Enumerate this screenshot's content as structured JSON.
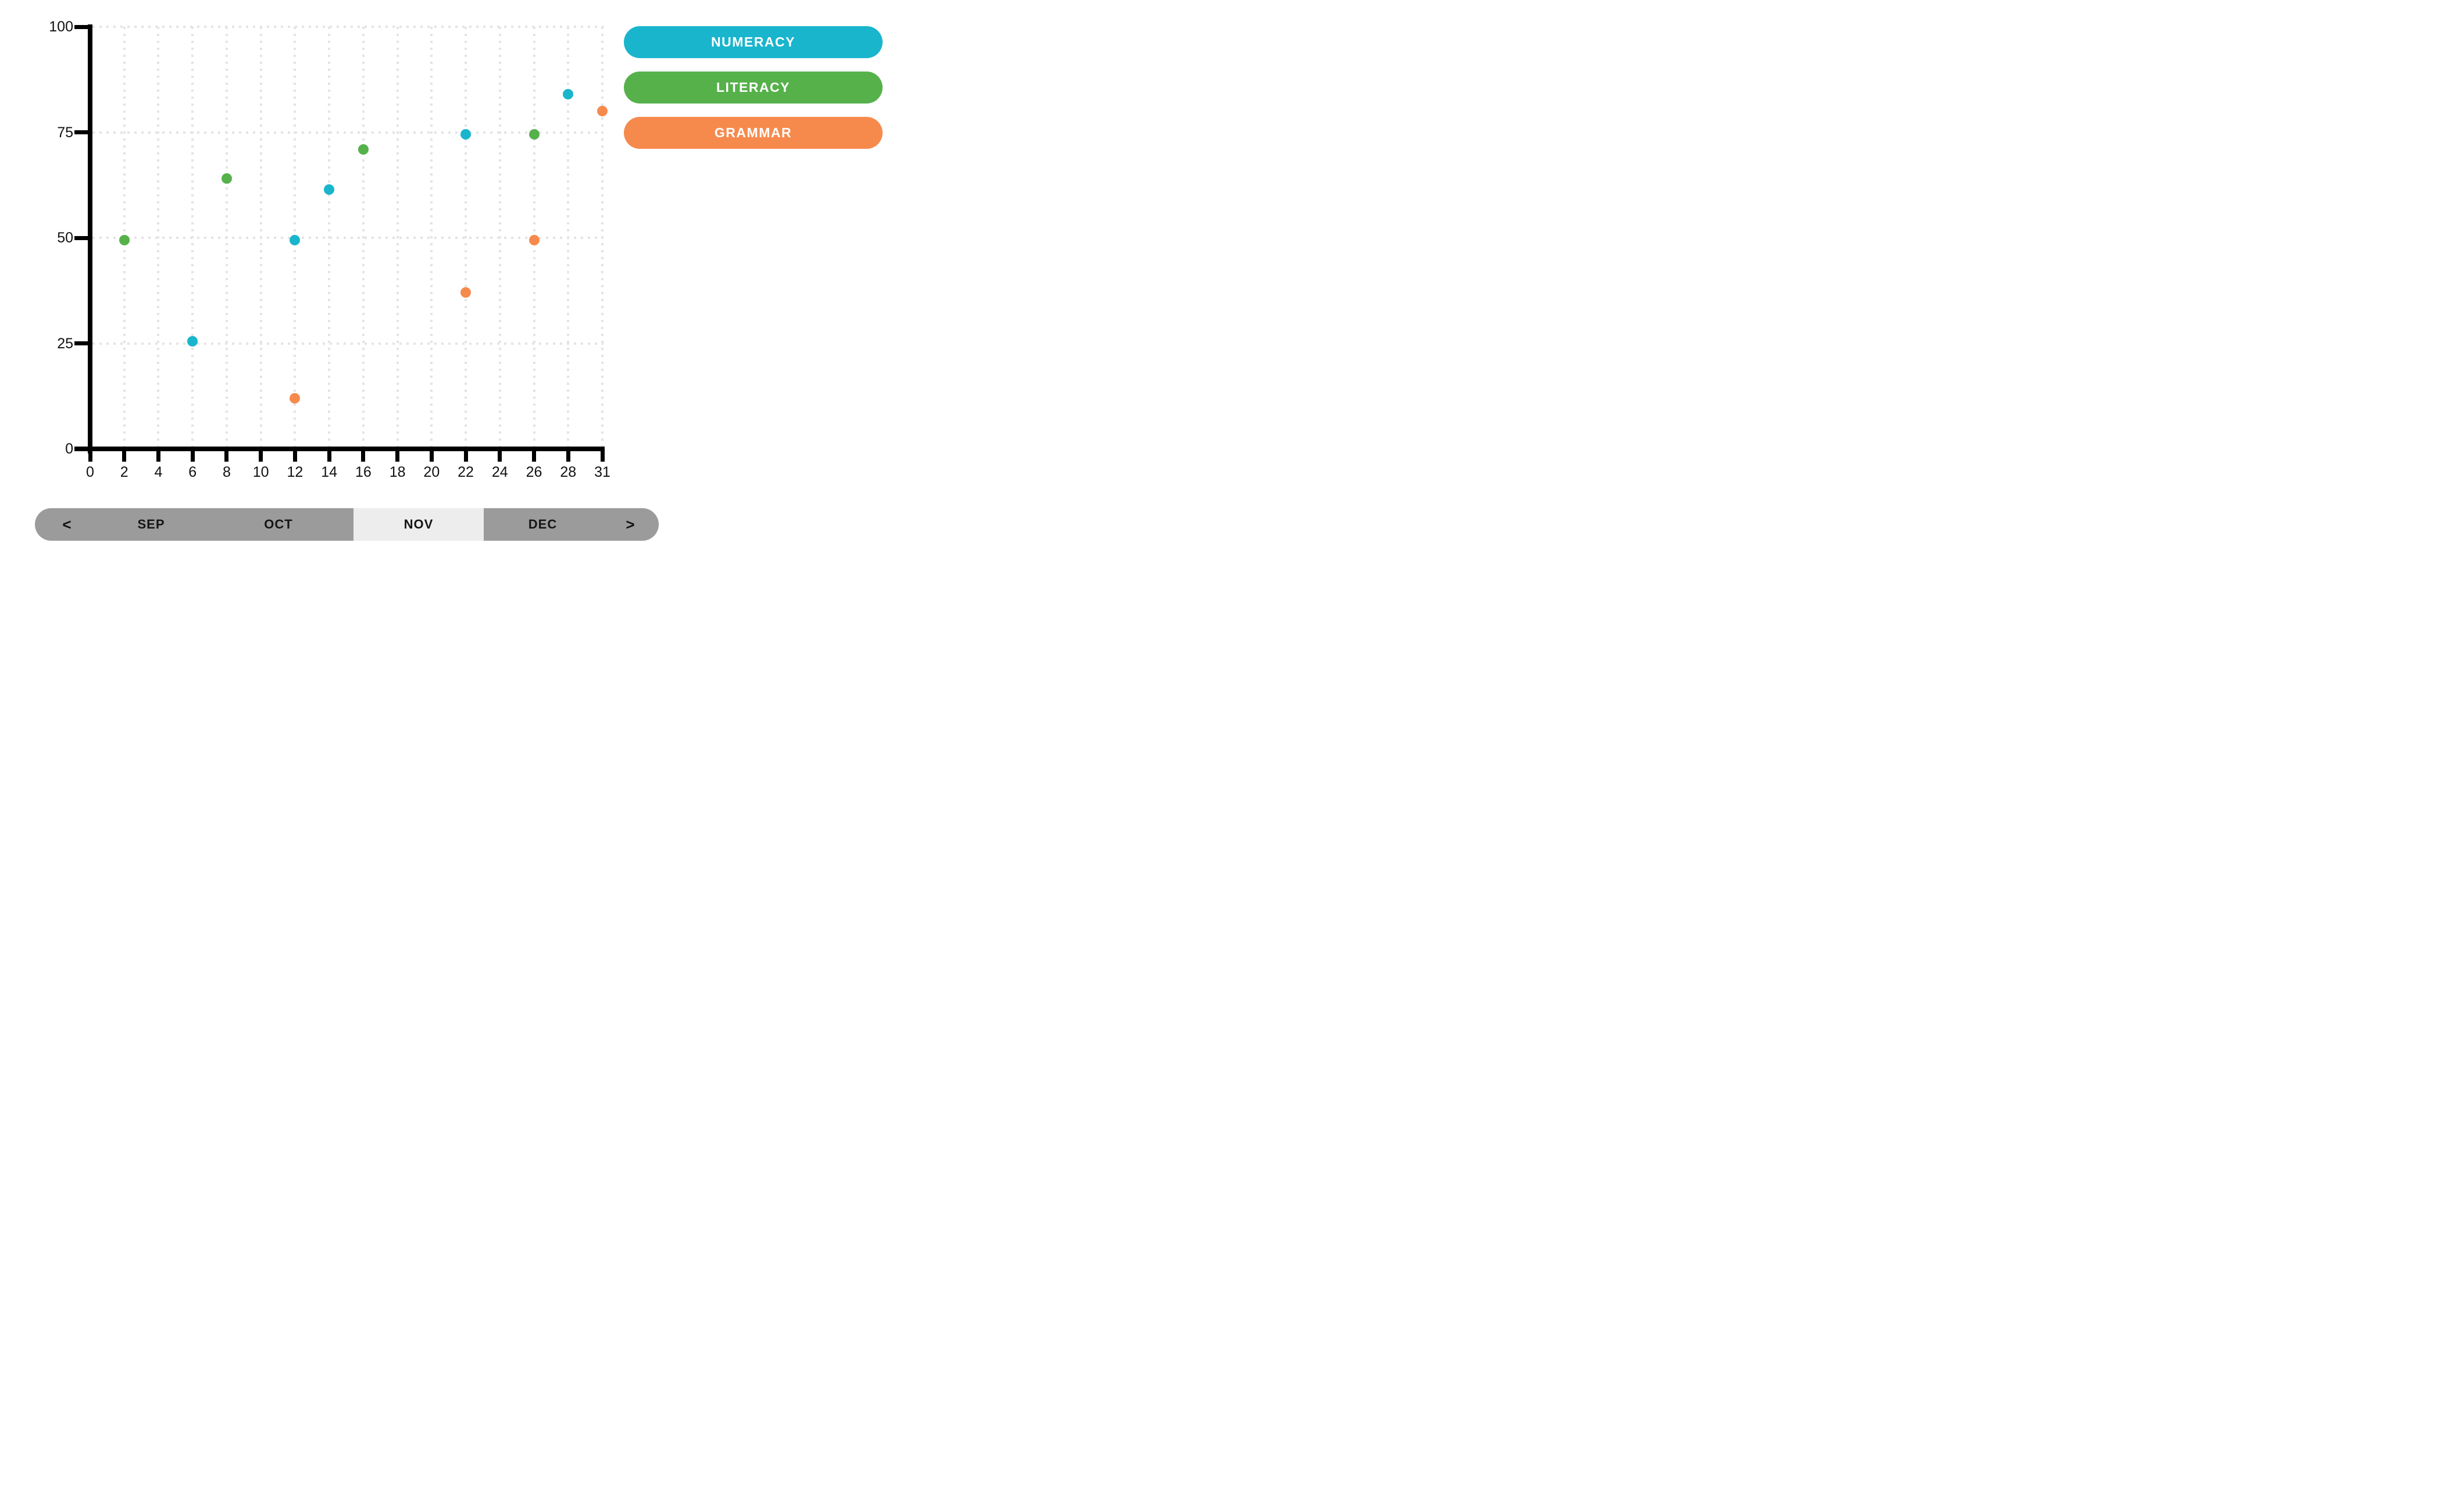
{
  "chart_data": {
    "type": "scatter",
    "title": "",
    "xlabel": "",
    "ylabel": "",
    "x_tick_labels": [
      "0",
      "2",
      "4",
      "6",
      "8",
      "10",
      "12",
      "14",
      "16",
      "18",
      "20",
      "22",
      "24",
      "26",
      "28",
      "31"
    ],
    "y_ticks": [
      0,
      25,
      50,
      75,
      100
    ],
    "ylim": [
      0,
      100
    ],
    "grid": "dotted",
    "legend_position": "right",
    "series": [
      {
        "name": "NUMERACY",
        "color": "#19b5cd",
        "points": [
          {
            "x": 6,
            "y": 25.5
          },
          {
            "x": 12,
            "y": 49.5
          },
          {
            "x": 14,
            "y": 61.5
          },
          {
            "x": 22,
            "y": 74.5
          },
          {
            "x": 28,
            "y": 84
          }
        ]
      },
      {
        "name": "LITERACY",
        "color": "#56b14b",
        "points": [
          {
            "x": 2,
            "y": 49.5
          },
          {
            "x": 8,
            "y": 64
          },
          {
            "x": 16,
            "y": 71
          },
          {
            "x": 26,
            "y": 74.5
          }
        ]
      },
      {
        "name": "GRAMMAR",
        "color": "#f68a4d",
        "points": [
          {
            "x": 12,
            "y": 12
          },
          {
            "x": 22,
            "y": 37
          },
          {
            "x": 26,
            "y": 49.5
          },
          {
            "x": 31,
            "y": 80
          }
        ]
      }
    ]
  },
  "month_nav": {
    "prev_label": "<",
    "next_label": ">",
    "months": [
      {
        "label": "SEP",
        "selected": false
      },
      {
        "label": "OCT",
        "selected": false
      },
      {
        "label": "NOV",
        "selected": true
      },
      {
        "label": "DEC",
        "selected": false
      }
    ],
    "bar_color": "#9b9b9b",
    "selected_color": "#ededed"
  },
  "colors": {
    "axis": "#000000",
    "gridline": "#e4e4e4",
    "label": "#111111"
  }
}
